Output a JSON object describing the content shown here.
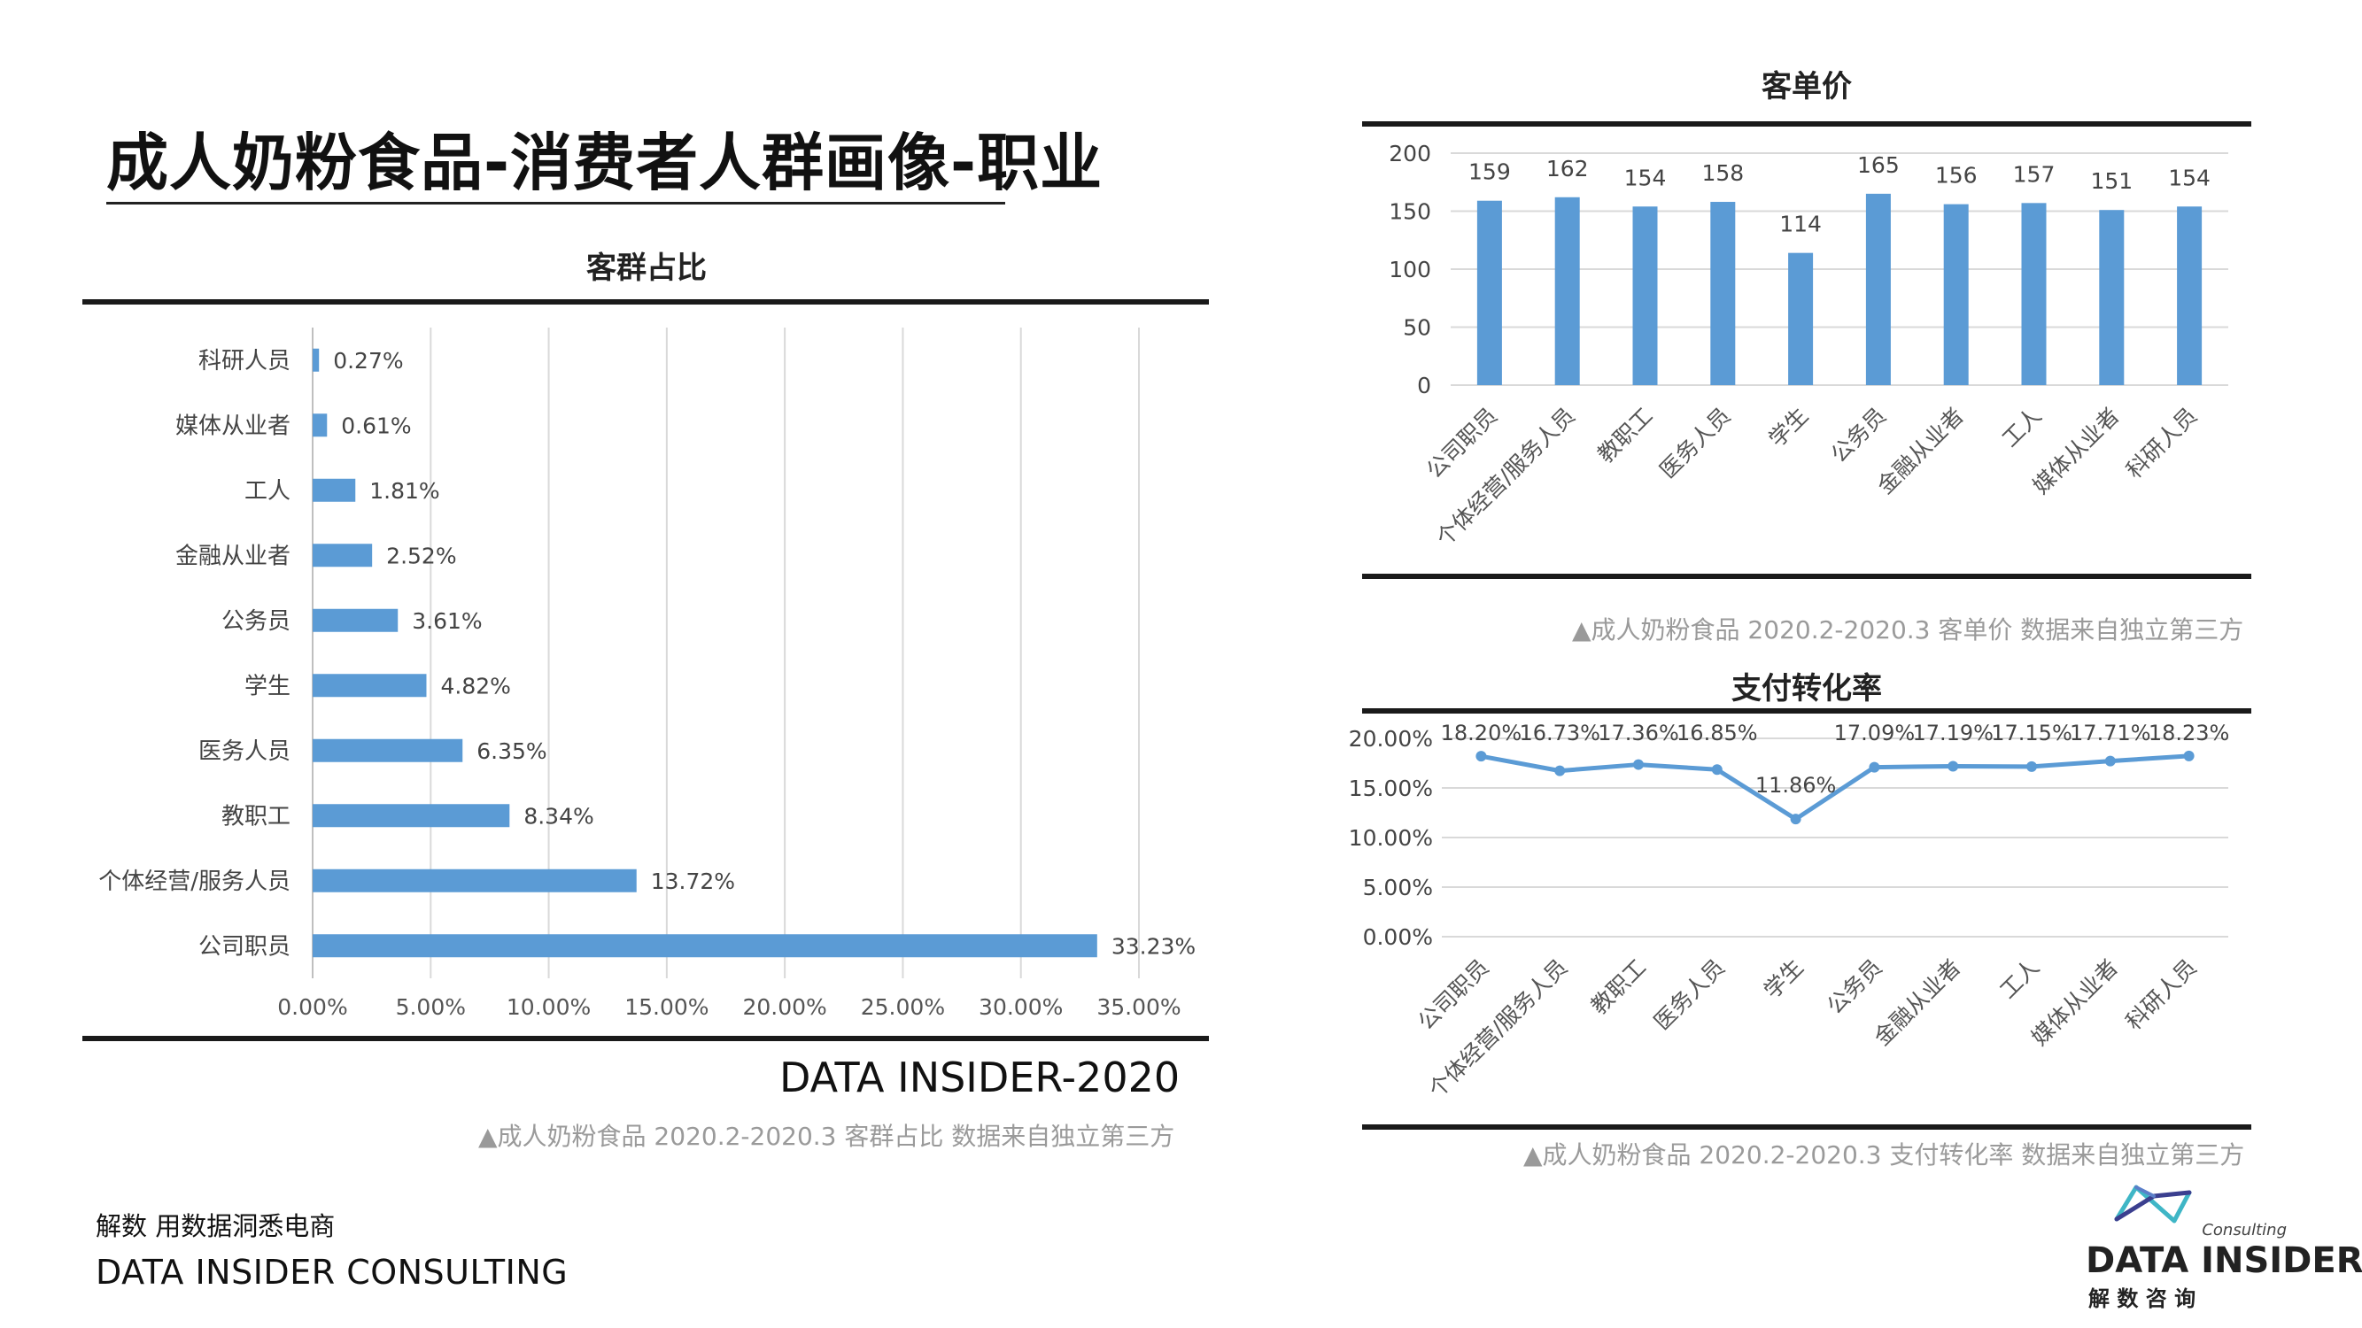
{
  "page": {
    "title": "成人奶粉食品-消费者人群画像-职业",
    "footer_label": "DATA INSIDER-2020",
    "brand_tagline": "解数 用数据洞悉电商",
    "brand_name": "DATA INSIDER CONSULTING",
    "logo": {
      "consulting": "Consulting",
      "name": "DATA INSIDER",
      "chinese": "解 数 咨 询"
    }
  },
  "colors": {
    "bar": "#5b9bd5",
    "line": "#5b9bd5",
    "grid": "#d9d9d9",
    "rule": "#1a1a1a",
    "caption": "#9a9a9a"
  },
  "chart_data": [
    {
      "id": "customer-share",
      "type": "bar",
      "orientation": "horizontal",
      "title": "客群占比",
      "categories": [
        "科研人员",
        "媒体从业者",
        "工人",
        "金融从业者",
        "公务员",
        "学生",
        "医务人员",
        "教职工",
        "个体经营/服务人员",
        "公司职员"
      ],
      "values": [
        0.27,
        0.61,
        1.81,
        2.52,
        3.61,
        4.82,
        6.35,
        8.34,
        13.72,
        33.23
      ],
      "value_labels": [
        "0.27%",
        "0.61%",
        "1.81%",
        "2.52%",
        "3.61%",
        "4.82%",
        "6.35%",
        "8.34%",
        "13.72%",
        "33.23%"
      ],
      "xlim": [
        0,
        35
      ],
      "x_ticks": [
        0,
        5,
        10,
        15,
        20,
        25,
        30,
        35
      ],
      "x_tick_labels": [
        "0.00%",
        "5.00%",
        "10.00%",
        "15.00%",
        "20.00%",
        "25.00%",
        "30.00%",
        "35.00%"
      ],
      "grid": true,
      "caption": "▲成人奶粉食品 2020.2-2020.3 客群占比 数据来自独立第三方"
    },
    {
      "id": "unit-price",
      "type": "bar",
      "orientation": "vertical",
      "title": "客单价",
      "categories": [
        "公司职员",
        "个体经营/服务人员",
        "教职工",
        "医务人员",
        "学生",
        "公务员",
        "金融从业者",
        "工人",
        "媒体从业者",
        "科研人员"
      ],
      "values": [
        159,
        162,
        154,
        158,
        114,
        165,
        156,
        157,
        151,
        154
      ],
      "value_labels": [
        "159",
        "162",
        "154",
        "158",
        "114",
        "165",
        "156",
        "157",
        "151",
        "154"
      ],
      "ylim": [
        0,
        200
      ],
      "y_ticks": [
        0,
        50,
        100,
        150,
        200
      ],
      "y_tick_labels": [
        "0",
        "50",
        "100",
        "150",
        "200"
      ],
      "grid": true,
      "caption": "▲成人奶粉食品 2020.2-2020.3 客单价 数据来自独立第三方"
    },
    {
      "id": "conversion-rate",
      "type": "line",
      "title": "支付转化率",
      "categories": [
        "公司职员",
        "个体经营/服务人员",
        "教职工",
        "医务人员",
        "学生",
        "公务员",
        "金融从业者",
        "工人",
        "媒体从业者",
        "科研人员"
      ],
      "values": [
        18.2,
        16.73,
        17.36,
        16.85,
        11.86,
        17.09,
        17.19,
        17.15,
        17.71,
        18.23
      ],
      "value_labels": [
        "18.20%",
        "16.73%",
        "17.36%",
        "16.85%",
        "11.86%",
        "17.09%",
        "17.19%",
        "17.15%",
        "17.71%",
        "18.23%"
      ],
      "ylim": [
        0,
        20
      ],
      "y_ticks": [
        0,
        5,
        10,
        15,
        20
      ],
      "y_tick_labels": [
        "0.00%",
        "5.00%",
        "10.00%",
        "15.00%",
        "20.00%"
      ],
      "grid": true,
      "caption": "▲成人奶粉食品 2020.2-2020.3 支付转化率 数据来自独立第三方"
    }
  ]
}
